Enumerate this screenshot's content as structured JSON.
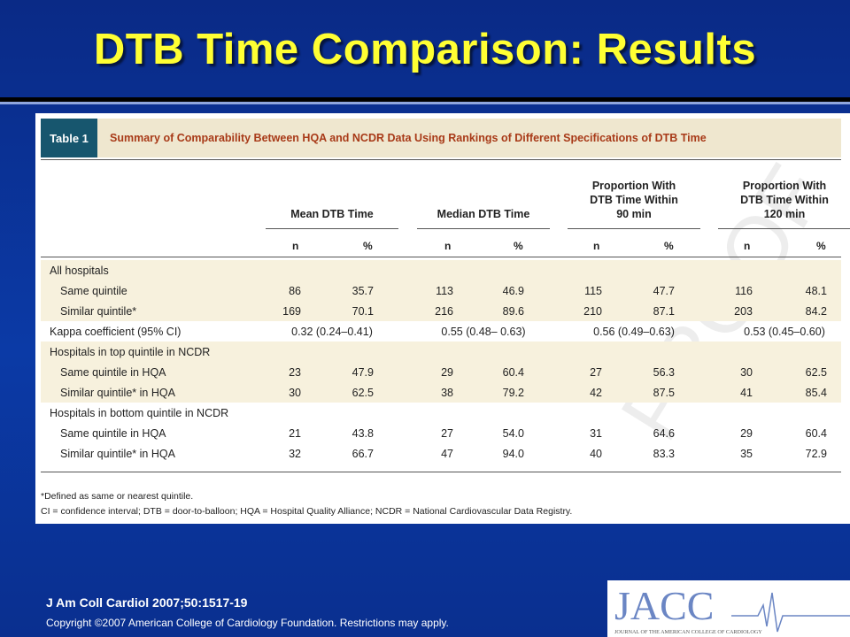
{
  "slide": {
    "title": "DTB Time Comparison: Results",
    "citation": "J Am Coll Cardiol 2007;50:1517-19",
    "copyright": "Copyright ©2007 American College of Cardiology Foundation. Restrictions may apply."
  },
  "table": {
    "tag": "Table 1",
    "caption": "Summary of Comparability Between HQA and NCDR Data Using Rankings of Different Specifications of DTB Time",
    "groups": [
      {
        "lines": [
          "Mean DTB Time"
        ]
      },
      {
        "lines": [
          "Median DTB Time"
        ]
      },
      {
        "lines": [
          "Proportion With",
          "DTB Time Within",
          "90 min"
        ]
      },
      {
        "lines": [
          "Proportion With",
          "DTB Time Within",
          "120 min"
        ]
      }
    ],
    "subheaders": [
      "n",
      "%"
    ],
    "sections": [
      {
        "label": "All hospitals",
        "rows": [
          {
            "label": "Same quintile",
            "values": [
              "86",
              "35.7",
              "113",
              "46.9",
              "115",
              "47.7",
              "116",
              "48.1"
            ]
          },
          {
            "label": "Similar quintile*",
            "values": [
              "169",
              "70.1",
              "216",
              "89.6",
              "210",
              "87.1",
              "203",
              "84.2"
            ]
          }
        ]
      },
      {
        "label": "Kappa coefficient (95% CI)",
        "kappa": [
          "0.32 (0.24–0.41)",
          "0.55 (0.48– 0.63)",
          "0.56 (0.49–0.63)",
          "0.53 (0.45–0.60)"
        ]
      },
      {
        "label": "Hospitals in top quintile in NCDR",
        "rows": [
          {
            "label": "Same quintile in HQA",
            "values": [
              "23",
              "47.9",
              "29",
              "60.4",
              "27",
              "56.3",
              "30",
              "62.5"
            ]
          },
          {
            "label": "Similar quintile* in HQA",
            "values": [
              "30",
              "62.5",
              "38",
              "79.2",
              "42",
              "87.5",
              "41",
              "85.4"
            ]
          }
        ]
      },
      {
        "label": "Hospitals in bottom quintile in NCDR",
        "rows": [
          {
            "label": "Same quintile in HQA",
            "values": [
              "21",
              "43.8",
              "27",
              "54.0",
              "31",
              "64.6",
              "29",
              "60.4"
            ]
          },
          {
            "label": "Similar quintile* in HQA",
            "values": [
              "32",
              "66.7",
              "47",
              "94.0",
              "40",
              "83.3",
              "35",
              "72.9"
            ]
          }
        ]
      }
    ],
    "footnotes": [
      "*Defined as same or nearest quintile.",
      "CI = confidence interval; DTB = door-to-balloon; HQA = Hospital Quality Alliance; NCDR = National Cardiovascular Data Registry."
    ]
  },
  "logo": {
    "wordmark": "JACC",
    "subtitle": "JOURNAL OF THE AMERICAN COLLEGE OF CARDIOLOGY"
  },
  "colors": {
    "background": "#0b3aa6",
    "title": "#ffff33",
    "table_tag": "#17566e",
    "caption_text": "#a83a18",
    "band": "#f7f1dd"
  }
}
